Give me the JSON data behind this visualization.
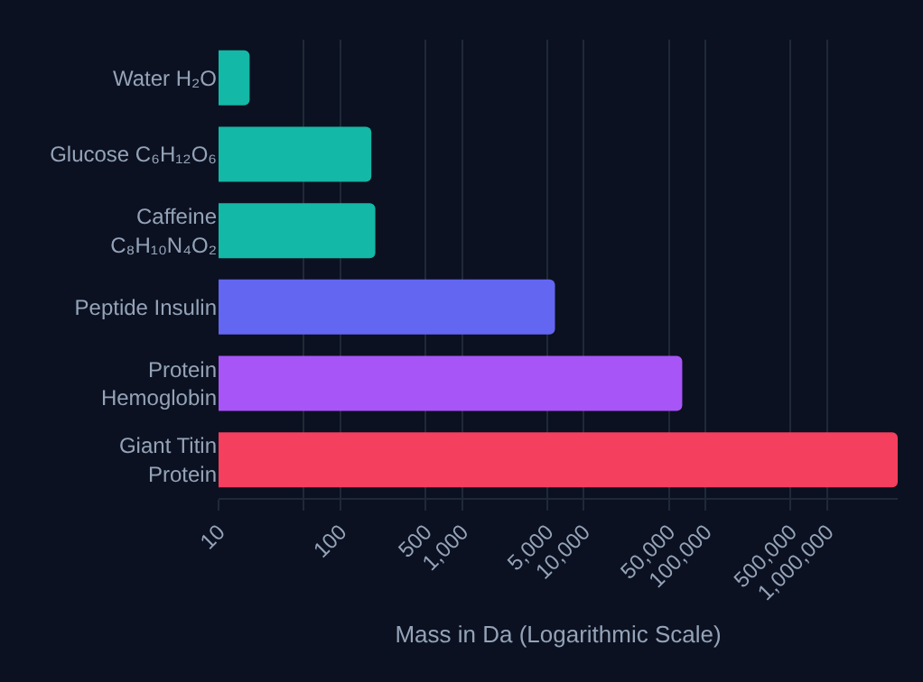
{
  "chart_data": {
    "type": "bar",
    "orientation": "horizontal",
    "log": "x",
    "xlabel": "Mass in Da (Logarithmic Scale)",
    "categories": [
      "Water H₂O",
      "Glucose C₆H₁₂O₆",
      "Caffeine C₈H₁₀N₄O₂",
      "Peptide Insulin",
      "Protein Hemoglobin",
      "Giant Titin Protein"
    ],
    "values": [
      18,
      180,
      194,
      5808,
      64500,
      3800000
    ],
    "colors": [
      "#14b8a6",
      "#14b8a6",
      "#14b8a6",
      "#6366f1",
      "#a855f7",
      "#f43f5e"
    ],
    "xlim": [
      10,
      3800000
    ],
    "xticks": [
      10,
      {
        "value": 50,
        "label": null
      },
      100,
      500,
      {
        "value": 1000,
        "label": "1,000"
      },
      {
        "value": 5000,
        "label": "5,000"
      },
      {
        "value": 10000,
        "label": "10,000"
      },
      {
        "value": 50000,
        "label": "50,000"
      },
      {
        "value": 100000,
        "label": "100,000"
      },
      {
        "value": 500000,
        "label": "500,000"
      },
      {
        "value": 1000000,
        "label": "1,000,000"
      }
    ],
    "grid": "x"
  }
}
